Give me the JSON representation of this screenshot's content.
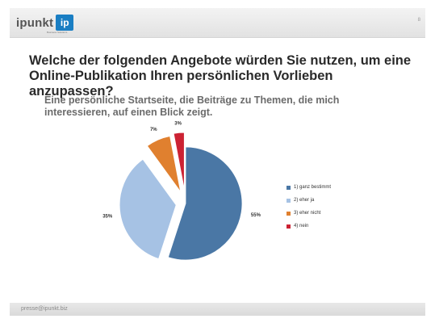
{
  "header": {
    "logo_text": "ipunkt",
    "logo_badge": "ip",
    "logo_tagline": "Business Solutions",
    "page_number": "8"
  },
  "main": {
    "title": "Welche der folgenden Angebote würden Sie nutzen, um eine Online-Publikation Ihren persönlichen Vorlieben anzupassen?",
    "question": "Eine persönliche Startseite, die Beiträge zu Themen, die mich interessieren, auf einen Blick zeigt."
  },
  "chart_data": {
    "type": "pie",
    "exploded": true,
    "legend_position": "right",
    "slices": [
      {
        "label": "1) ganz bestimmt",
        "value": 55,
        "display": "55%",
        "color": "#4a77a5"
      },
      {
        "label": "2) eher ja",
        "value": 35,
        "display": "35%",
        "color": "#a6c2e4"
      },
      {
        "label": "3) eher nicht",
        "value": 7,
        "display": "7%",
        "color": "#e0802f"
      },
      {
        "label": "4) nein",
        "value": 3,
        "display": "3%",
        "color": "#cc2233"
      }
    ]
  },
  "footer": {
    "email": "presse@ipunkt.biz"
  }
}
